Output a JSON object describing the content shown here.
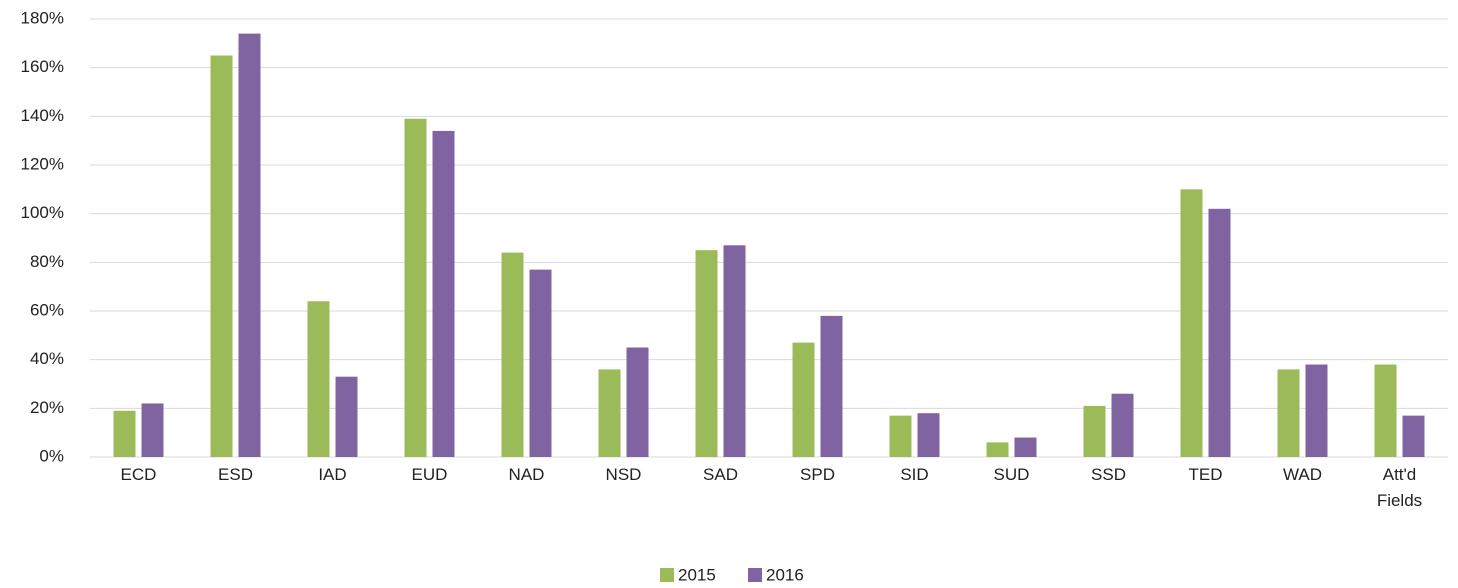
{
  "chart_data": {
    "type": "bar",
    "categories": [
      "ECD",
      "ESD",
      "IAD",
      "EUD",
      "NAD",
      "NSD",
      "SAD",
      "SPD",
      "SID",
      "SUD",
      "SSD",
      "TED",
      "WAD",
      "Att'd Fields"
    ],
    "series": [
      {
        "name": "2015",
        "color": "#9bbb59",
        "values": [
          19,
          165,
          64,
          139,
          84,
          36,
          85,
          47,
          17,
          6,
          21,
          110,
          36,
          38
        ]
      },
      {
        "name": "2016",
        "color": "#8064a2",
        "values": [
          22,
          174,
          33,
          134,
          77,
          45,
          87,
          58,
          18,
          8,
          26,
          102,
          38,
          17
        ]
      }
    ],
    "ylim": [
      0,
      180
    ],
    "yticks": [
      {
        "value": 0,
        "label": "0%"
      },
      {
        "value": 20,
        "label": "20%"
      },
      {
        "value": 40,
        "label": "40%"
      },
      {
        "value": 60,
        "label": "60%"
      },
      {
        "value": 80,
        "label": "80%"
      },
      {
        "value": 100,
        "label": "100%"
      },
      {
        "value": 120,
        "label": "120%"
      },
      {
        "value": 140,
        "label": "140%"
      },
      {
        "value": 160,
        "label": "160%"
      },
      {
        "value": 180,
        "label": "180%"
      }
    ],
    "grid": true,
    "legend": "bottom"
  }
}
